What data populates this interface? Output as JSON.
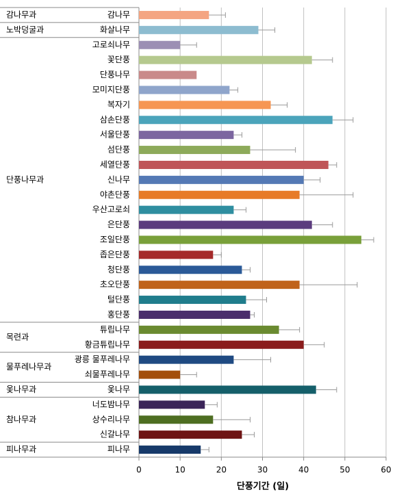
{
  "chart_data": {
    "type": "bar",
    "orientation": "horizontal",
    "x_label": "단풍기간 (일)",
    "categories": [
      "감나무",
      "화살나무",
      "고로쇠나무",
      "꽃단풍",
      "단풍나무",
      "모미지단풍",
      "복자기",
      "삼손단풍",
      "서울단풍",
      "섬단풍",
      "세열단풍",
      "신나무",
      "야촌단풍",
      "우산고로쇠",
      "은단풍",
      "조일단풍",
      "좁은단풍",
      "청단풍",
      "초오단풍",
      "털단풍",
      "홍단풍",
      "튜립나무",
      "황금튜립나무",
      "광릉 물푸레나무",
      "쇠물푸레나무",
      "옻나무",
      "너도밤나무",
      "상수리나무",
      "신갈나무",
      "피나무"
    ],
    "values": [
      17,
      29,
      10,
      42,
      14,
      22,
      32,
      47,
      23,
      27,
      46,
      40,
      39,
      23,
      42,
      54,
      18,
      25,
      39,
      26,
      27,
      34,
      40,
      23,
      10,
      43,
      16,
      18,
      25,
      15
    ],
    "errors": [
      4,
      4,
      4,
      5,
      0,
      2,
      4,
      5,
      2,
      11,
      2,
      4,
      13,
      3,
      5,
      3,
      2,
      2,
      14,
      5,
      1,
      5,
      5,
      9,
      4,
      5,
      3,
      9,
      3,
      2
    ],
    "colors": [
      "#f4a582",
      "#8dbcd0",
      "#9c8fb4",
      "#b5c98e",
      "#c98a8a",
      "#8fa5cb",
      "#f69653",
      "#4ba4bb",
      "#7c66a0",
      "#8daa5a",
      "#bf5558",
      "#5479b5",
      "#e77b27",
      "#2f8ea0",
      "#5b3b7e",
      "#79a03a",
      "#a52a2a",
      "#2b5a98",
      "#c0631a",
      "#207d8c",
      "#4a2e6c",
      "#6a8a30",
      "#8a1c1c",
      "#1f4a82",
      "#a34f0c",
      "#155f6a",
      "#3a2458",
      "#4e6e22",
      "#6e1414",
      "#173a6a"
    ],
    "groups": [
      {
        "name": "감나무과",
        "count": 1
      },
      {
        "name": "노박덩굴과",
        "count": 1
      },
      {
        "name": "단풍나무과",
        "count": 19
      },
      {
        "name": "목련과",
        "count": 2
      },
      {
        "name": "물푸레나무과",
        "count": 2
      },
      {
        "name": "옻나무과",
        "count": 1
      },
      {
        "name": "참나무과",
        "count": 3
      },
      {
        "name": "피나무과",
        "count": 1
      }
    ],
    "xlim": [
      0,
      60
    ],
    "xticks": [
      0,
      10,
      20,
      30,
      40,
      50,
      60
    ],
    "grid": true
  }
}
